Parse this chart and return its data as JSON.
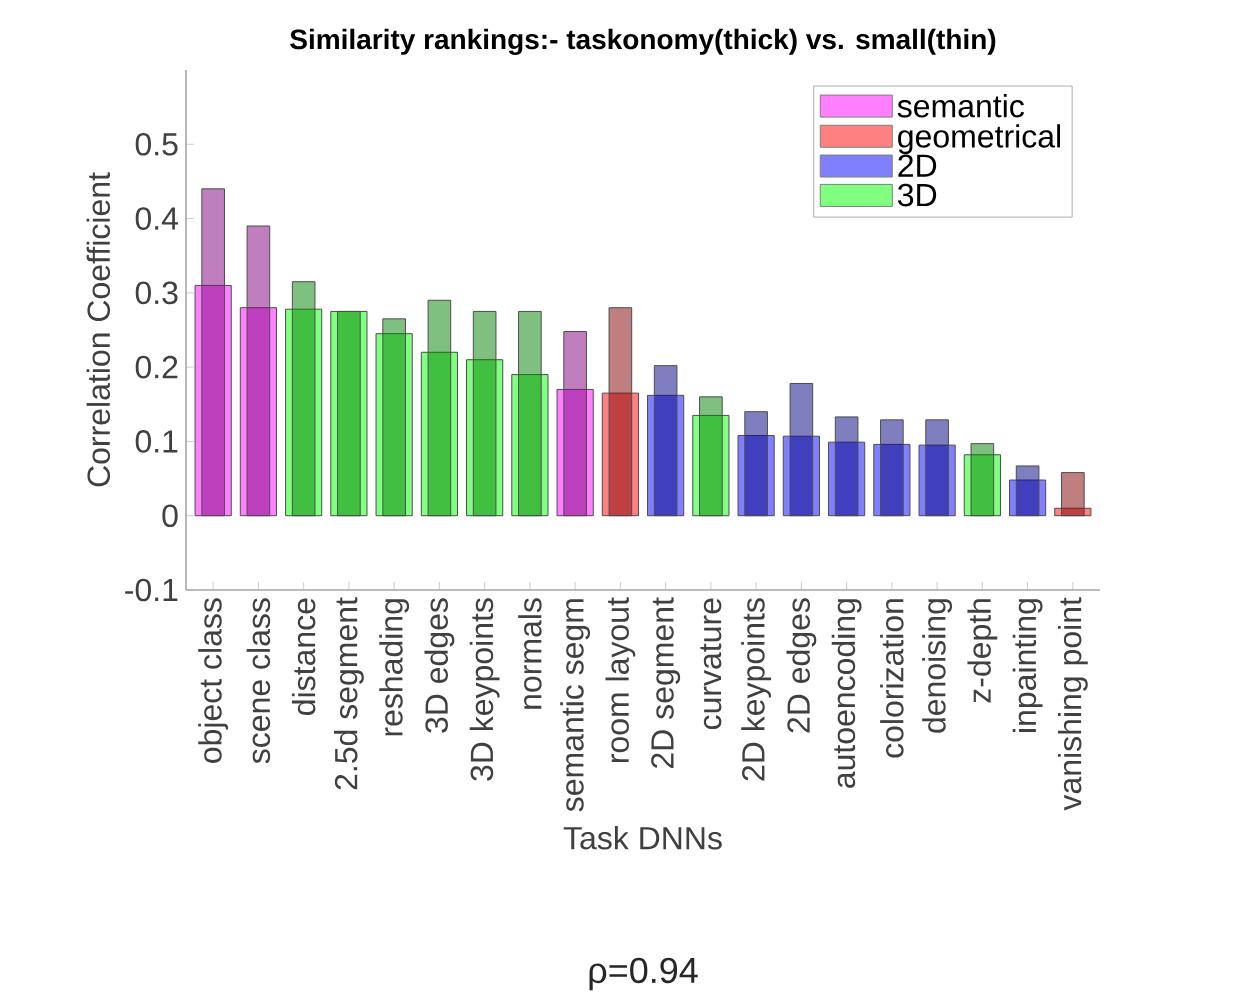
{
  "chart_data": {
    "type": "bar",
    "title": "Similarity rankings:- taskonomy(thick) vs. small(thin)",
    "xlabel": "Task DNNs",
    "ylabel": "Correlation Coefficient",
    "annotations": [
      "ρ=0.94"
    ],
    "categories": [
      "object class",
      "scene class",
      "distance",
      "2.5d segment",
      "reshading",
      "3D edges",
      "3D keypoints",
      "normals",
      "semantic segm",
      "room layout",
      "2D segment",
      "curvature",
      "2D keypoints",
      "2D edges",
      "autoencoding",
      "colorization",
      "denoising",
      "z-depth",
      "inpainting",
      "vanishing point"
    ],
    "ylim": [
      -0.1,
      0.6
    ],
    "yticks": [
      -0.1,
      0,
      0.1,
      0.2,
      0.3,
      0.4,
      0.5
    ],
    "grid": false,
    "legend": "top right",
    "series": [
      {
        "name": "semantic",
        "color": "#ff80ff",
        "values": [
          0.31,
          0.28,
          null,
          null,
          null,
          null,
          null,
          null,
          0.17,
          null,
          null,
          null,
          null,
          null,
          null,
          null,
          null,
          null,
          null,
          null
        ]
      },
      {
        "name": "geometrical",
        "color": "#ff8080",
        "values": [
          null,
          null,
          null,
          null,
          null,
          null,
          null,
          null,
          null,
          0.165,
          null,
          null,
          null,
          null,
          null,
          null,
          null,
          null,
          null,
          0.01
        ]
      },
      {
        "name": "2D",
        "color": "#8080ff",
        "values": [
          null,
          null,
          null,
          null,
          null,
          null,
          null,
          null,
          null,
          null,
          0.162,
          null,
          0.108,
          0.107,
          0.099,
          0.096,
          0.095,
          null,
          0.048,
          null
        ]
      },
      {
        "name": "3D",
        "color": "#80ff80",
        "values": [
          null,
          null,
          0.278,
          0.275,
          0.245,
          0.22,
          0.21,
          0.19,
          null,
          null,
          null,
          0.135,
          null,
          null,
          null,
          null,
          null,
          0.082,
          null,
          null
        ]
      },
      {
        "color": "#800080",
        "values": [
          0.44,
          0.39,
          null,
          null,
          null,
          null,
          null,
          null,
          0.248,
          null,
          null,
          null,
          null,
          null,
          null,
          null,
          null,
          null,
          null,
          null
        ]
      },
      {
        "color": "#800000",
        "values": [
          null,
          null,
          null,
          null,
          null,
          null,
          null,
          null,
          null,
          0.28,
          null,
          null,
          null,
          null,
          null,
          null,
          null,
          null,
          null,
          0.058
        ]
      },
      {
        "color": "#000080",
        "values": [
          null,
          null,
          null,
          null,
          null,
          null,
          null,
          null,
          null,
          null,
          0.202,
          null,
          0.14,
          0.178,
          0.133,
          0.129,
          0.129,
          null,
          0.067,
          null
        ]
      },
      {
        "color": "#008000",
        "values": [
          null,
          null,
          0.315,
          0.275,
          0.265,
          0.29,
          0.275,
          0.275,
          null,
          null,
          null,
          0.16,
          null,
          null,
          null,
          null,
          null,
          0.097,
          null,
          null
        ]
      }
    ]
  }
}
